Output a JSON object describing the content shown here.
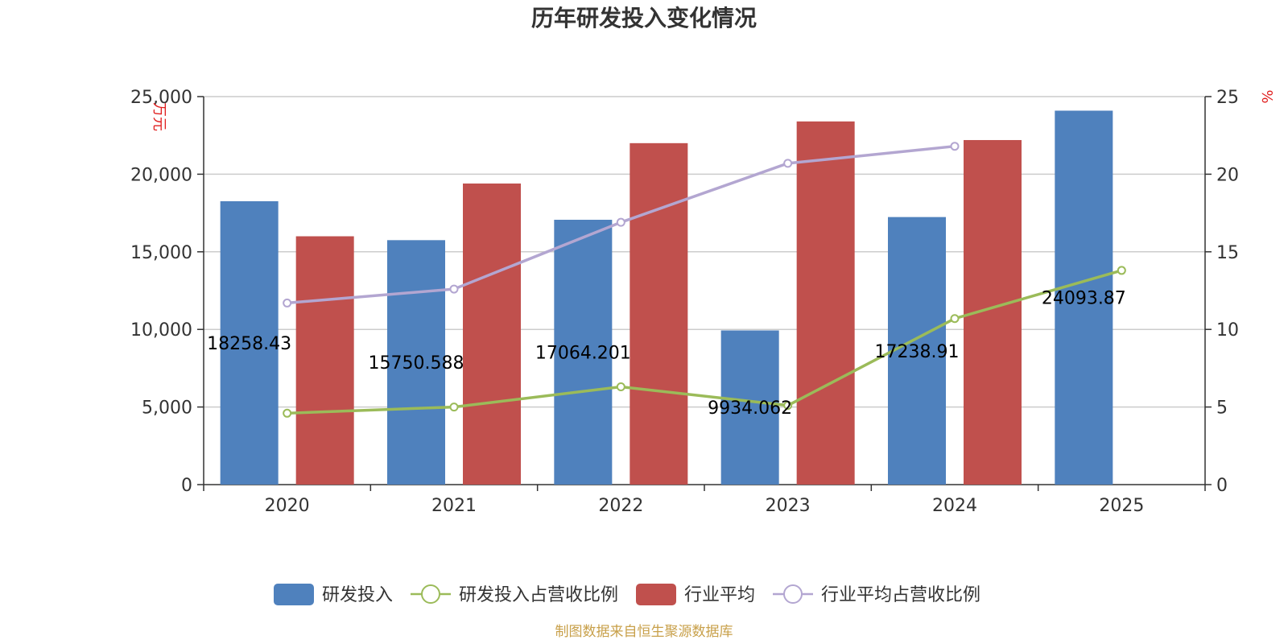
{
  "chart_data": {
    "type": "bar",
    "title": "历年研发投入变化情况",
    "categories": [
      "2020",
      "2021",
      "2022",
      "2023",
      "2024",
      "2025"
    ],
    "y_left": {
      "unit": "万元",
      "ylim": [
        0,
        25000
      ],
      "ticks": [
        "0",
        "5,000",
        "10,000",
        "15,000",
        "20,000",
        "25,000"
      ],
      "tick_values": [
        0,
        5000,
        10000,
        15000,
        20000,
        25000
      ]
    },
    "y_right": {
      "unit": "%",
      "ylim": [
        0,
        25
      ],
      "ticks": [
        "0",
        "5",
        "10",
        "15",
        "20",
        "25"
      ],
      "tick_values": [
        0,
        5,
        10,
        15,
        20,
        25
      ]
    },
    "series": [
      {
        "name": "研发投入",
        "kind": "bar",
        "axis": "left",
        "color": "#4f81bd",
        "values": [
          18258.43,
          15750.588,
          17064.201,
          9934.062,
          17238.91,
          24093.87
        ],
        "labels": [
          "18258.43",
          "15750.588",
          "17064.201",
          "9934.062",
          "17238.91",
          "24093.87"
        ]
      },
      {
        "name": "研发投入占营收比例",
        "kind": "line",
        "axis": "right",
        "color": "#9bbb59",
        "values": [
          4.6,
          5.0,
          6.3,
          5.1,
          10.7,
          13.8
        ]
      },
      {
        "name": "行业平均",
        "kind": "bar",
        "axis": "left",
        "color": "#c0504d",
        "values": [
          16000,
          19400,
          22000,
          23400,
          22200,
          null
        ]
      },
      {
        "name": "行业平均占营收比例",
        "kind": "line",
        "axis": "right",
        "color": "#b3a6d1",
        "values": [
          11.7,
          12.6,
          16.9,
          20.7,
          21.8,
          null
        ]
      }
    ],
    "legend_position": "bottom",
    "grid": true
  },
  "source_text": "制图数据来自恒生聚源数据库"
}
